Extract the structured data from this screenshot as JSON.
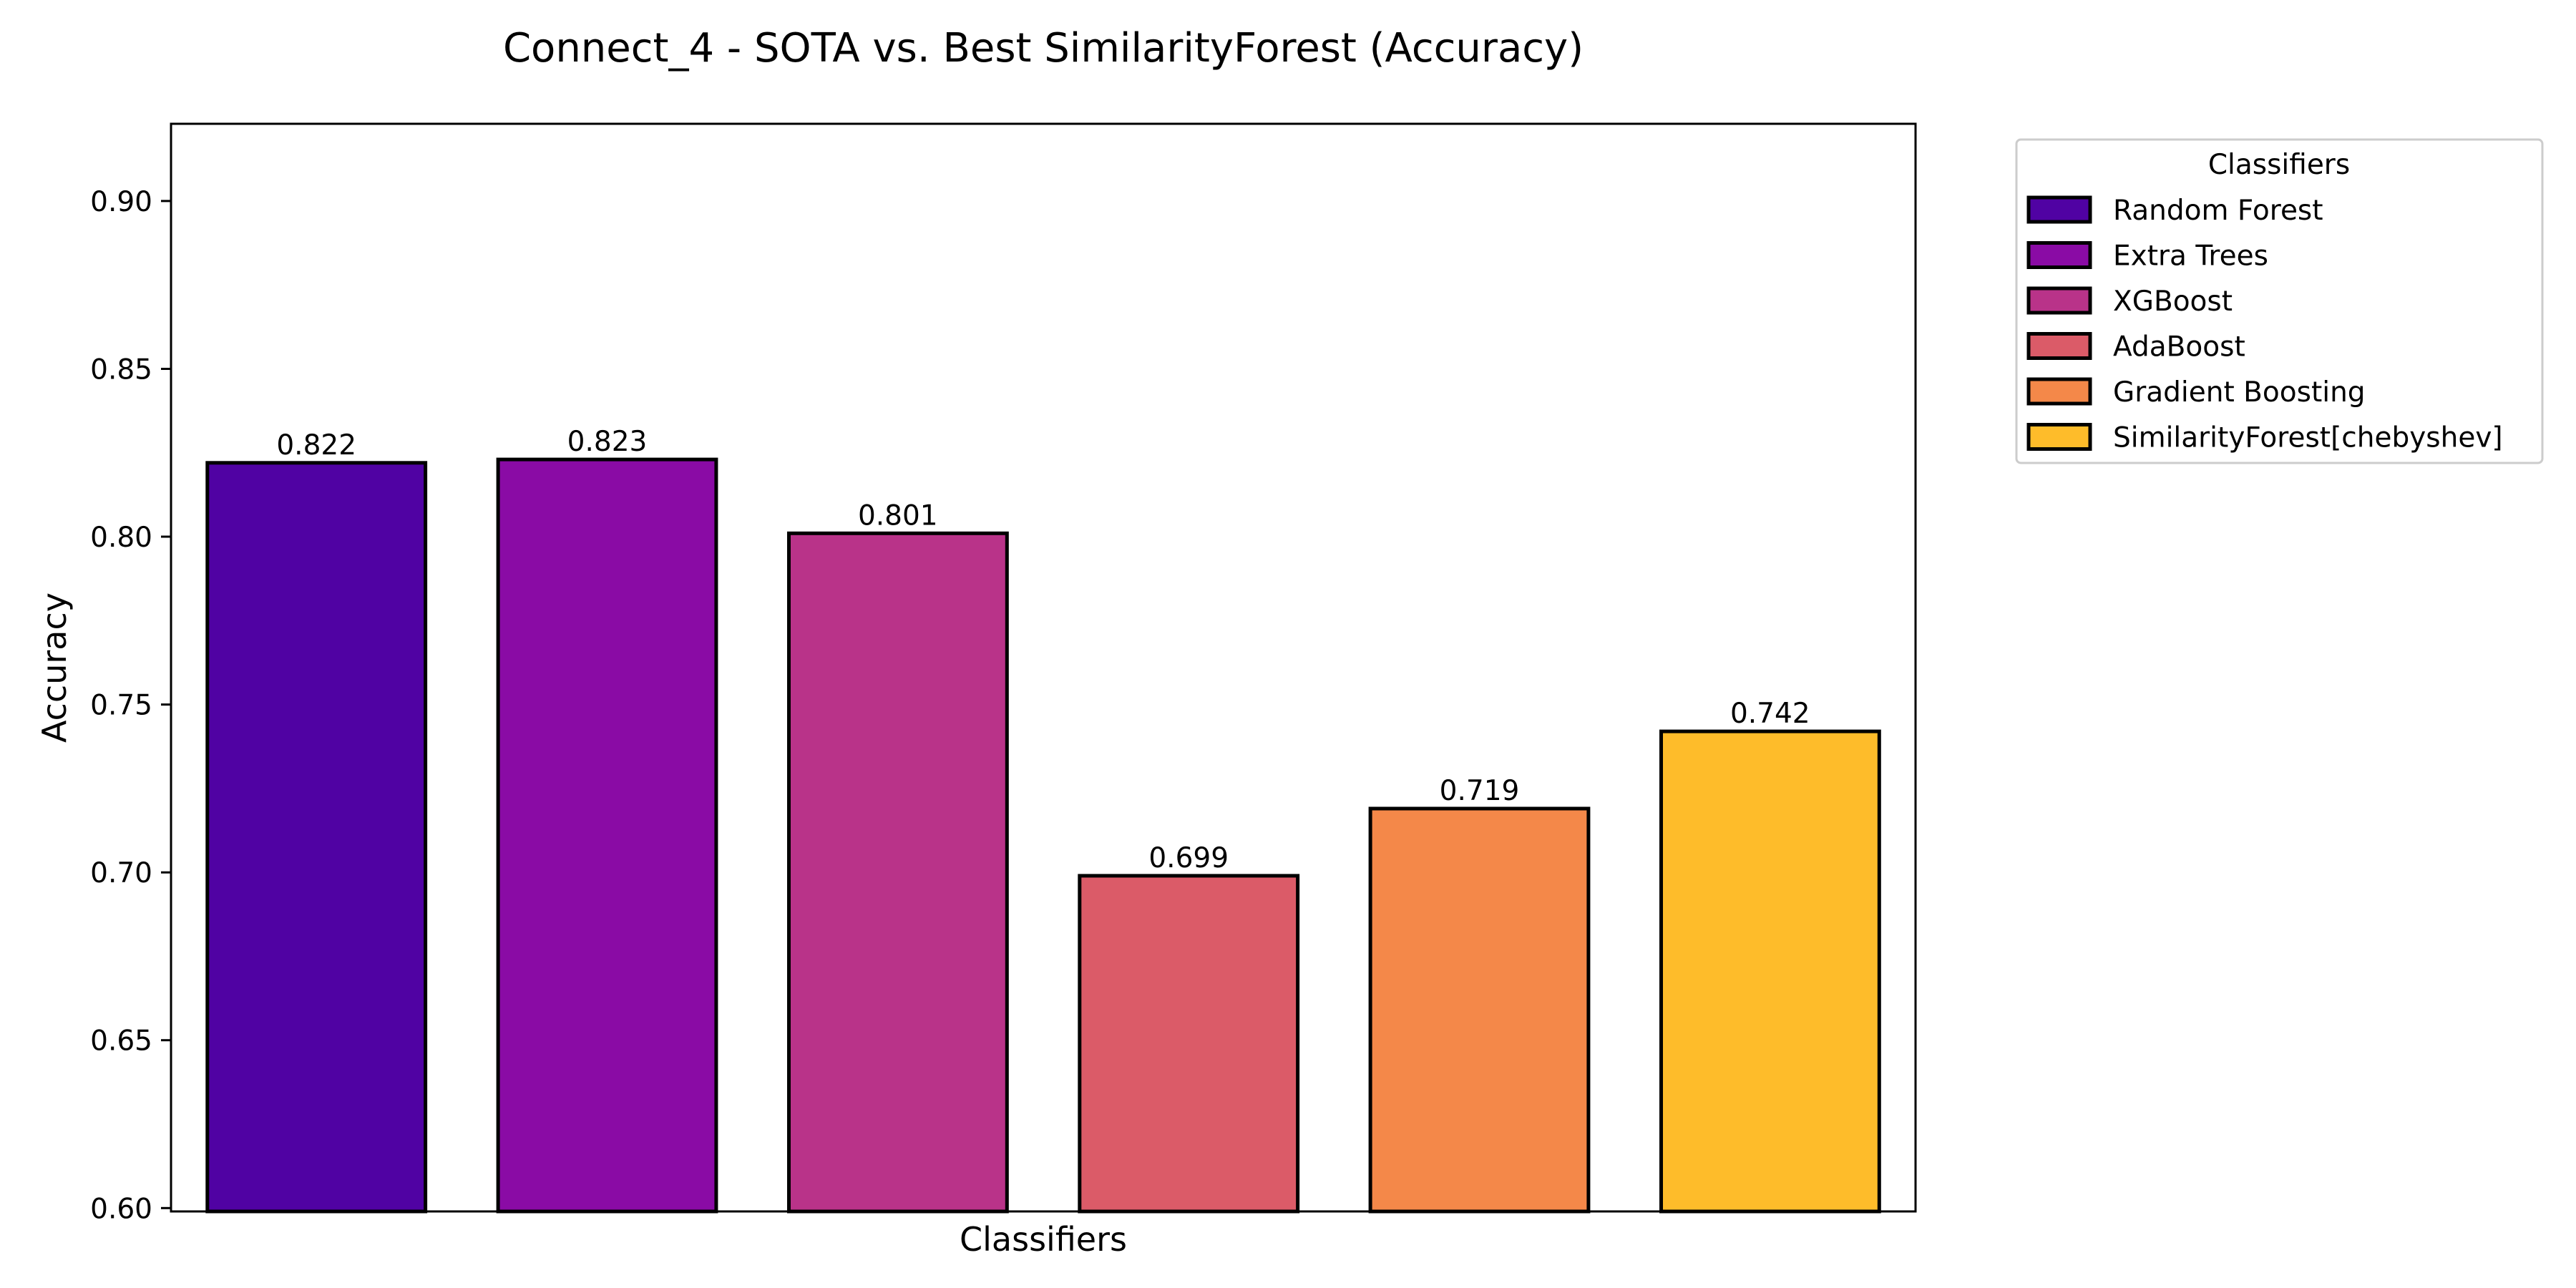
{
  "chart_data": {
    "type": "bar",
    "title": "Connect_4 - SOTA vs. Best SimilarityForest (Accuracy)",
    "xlabel": "Classifiers",
    "ylabel": "Accuracy",
    "ylim": [
      0.599,
      0.923
    ],
    "yticks": [
      "0.60",
      "0.65",
      "0.70",
      "0.75",
      "0.80",
      "0.85",
      "0.90"
    ],
    "grid": false,
    "legend": {
      "title": "Classifiers",
      "placement": "outside-top-right"
    },
    "categories": [
      "Random Forest",
      "Extra Trees",
      "XGBoost",
      "AdaBoost",
      "Gradient Boosting",
      "SimilarityForest[chebyshev]"
    ],
    "values": [
      0.822,
      0.823,
      0.801,
      0.699,
      0.719,
      0.742
    ],
    "value_labels": [
      "0.822",
      "0.823",
      "0.801",
      "0.699",
      "0.719",
      "0.742"
    ],
    "colors": [
      "#5002a3",
      "#8a0ba5",
      "#b93389",
      "#db5b68",
      "#f48849",
      "#febc2a"
    ]
  }
}
